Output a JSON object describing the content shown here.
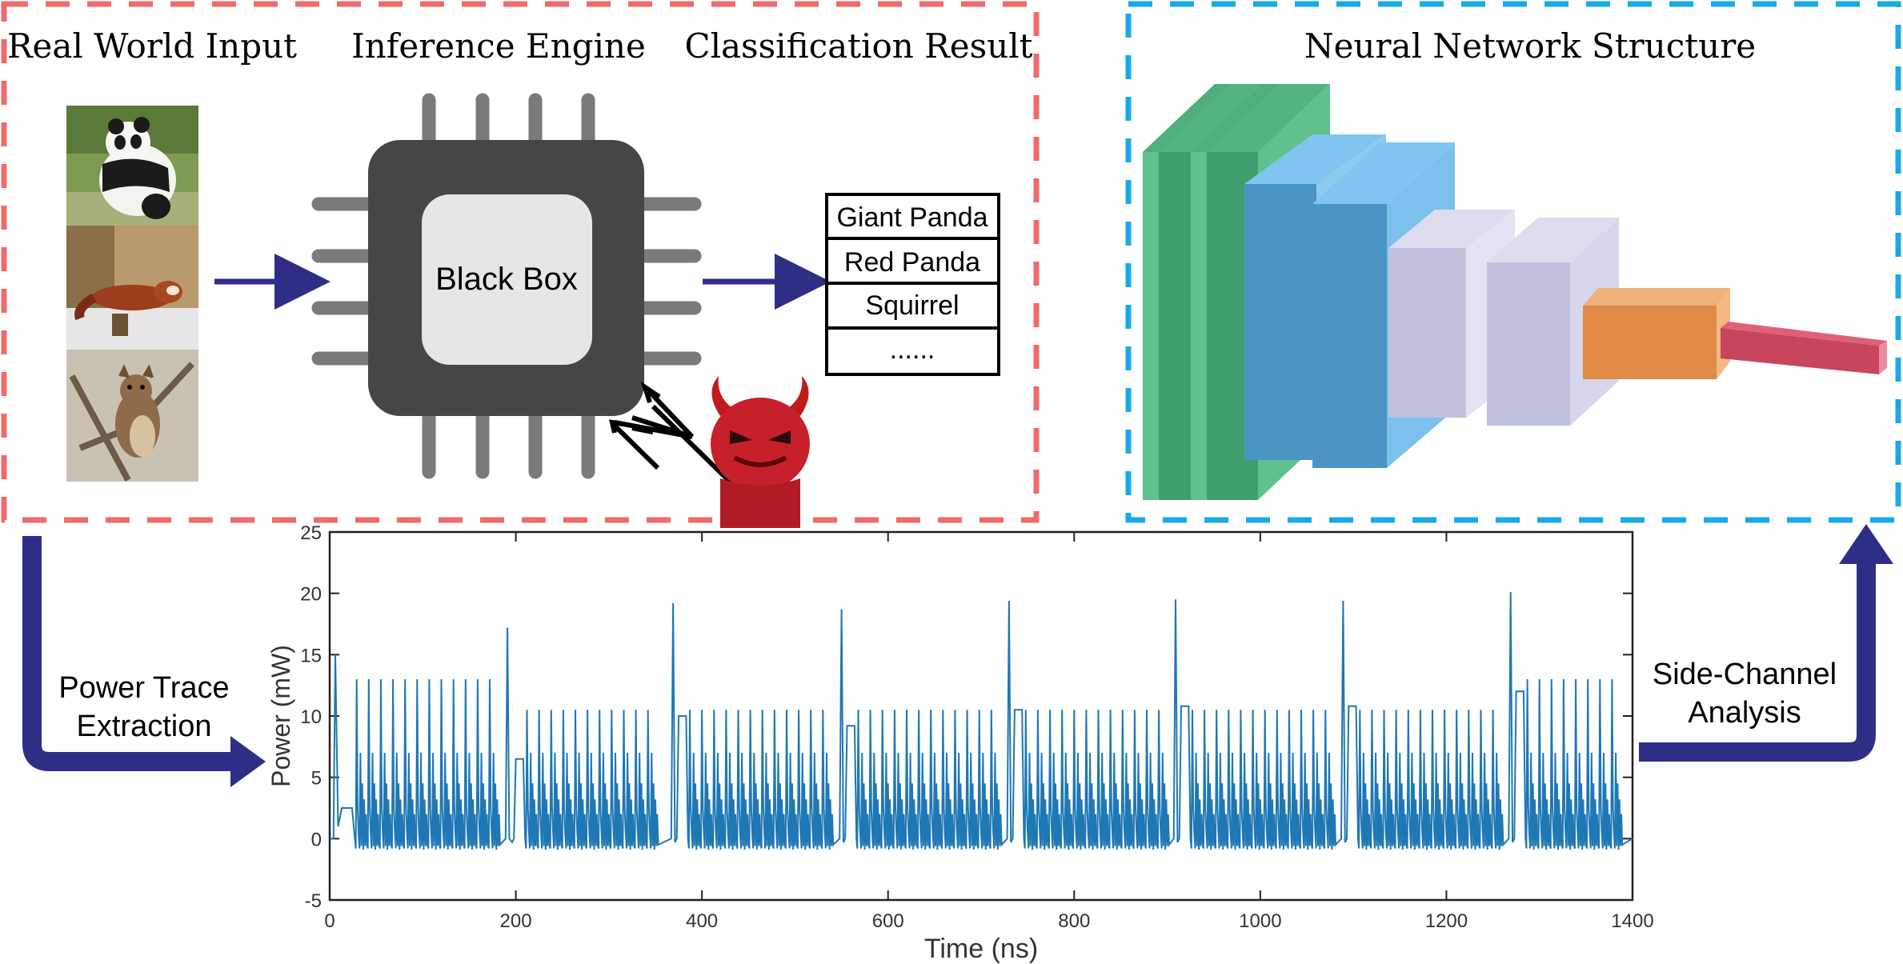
{
  "left_panel": {
    "input_title": "Real World Input",
    "engine_title": "Inference Engine",
    "result_title": "Classification Result",
    "chip_label": "Black Box",
    "input_images": [
      "giant-panda-photo",
      "red-panda-photo",
      "squirrel-photo"
    ],
    "results": [
      "Giant Panda",
      "Red Panda",
      "Squirrel",
      "......"
    ],
    "border_color": "#f06a6a"
  },
  "right_panel": {
    "title": "Neural Network Structure",
    "border_color": "#1aa9e8",
    "layer_colors": {
      "conv": "#5fc18d",
      "conv_dark": "#3e9e6c",
      "blue": "#6ab9e8",
      "blue_dark": "#4a95c6",
      "pool": "#c9cbe3",
      "pool_light": "#e2e3f3",
      "dense": "#e69049",
      "out": "#c8455e"
    }
  },
  "flow": {
    "left_label_line1": "Power Trace",
    "left_label_line2": "Extraction",
    "right_label_line1": "Side-Channel",
    "right_label_line2": "Analysis",
    "arrow_color": "#2f2e87"
  },
  "chart_data": {
    "type": "line",
    "xlabel": "Time (ns)",
    "ylabel": "Power (mW)",
    "xlim": [
      0,
      1400
    ],
    "ylim": [
      -5,
      25
    ],
    "xticks": [
      0,
      200,
      400,
      600,
      800,
      1000,
      1200,
      1400
    ],
    "yticks": [
      -5,
      0,
      5,
      10,
      15,
      20,
      25
    ],
    "line_color": "#1f77b4",
    "segments": [
      {
        "start": 0,
        "end": 192,
        "peak": 17.2,
        "plateau": 2.5,
        "spike": 13.0,
        "lead_peak": 15.0
      },
      {
        "start": 200,
        "end": 370,
        "peak": 19.2,
        "plateau": 6.5,
        "spike": 10.5
      },
      {
        "start": 375,
        "end": 551,
        "peak": 18.7,
        "plateau": 10.0,
        "spike": 10.5
      },
      {
        "start": 556,
        "end": 731,
        "peak": 19.4,
        "plateau": 9.2,
        "spike": 10.5
      },
      {
        "start": 736,
        "end": 910,
        "peak": 19.5,
        "plateau": 10.5,
        "spike": 10.5
      },
      {
        "start": 915,
        "end": 1090,
        "peak": 19.4,
        "plateau": 10.8,
        "spike": 10.5
      },
      {
        "start": 1095,
        "end": 1270,
        "peak": 20.1,
        "plateau": 10.8,
        "spike": 10.5
      },
      {
        "start": 1275,
        "end": 1400,
        "peak": null,
        "plateau": 12.0,
        "spike": 13.0
      }
    ]
  }
}
